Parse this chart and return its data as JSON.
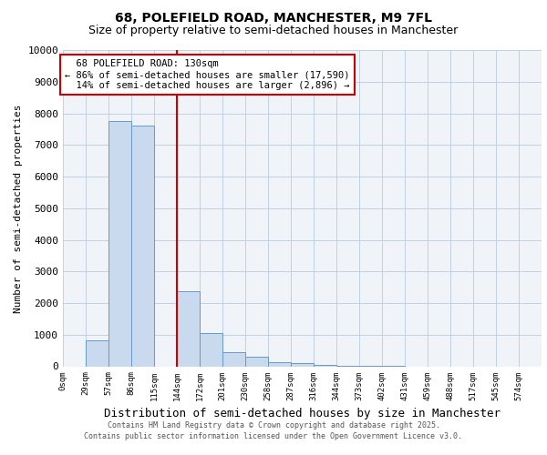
{
  "title": "68, POLEFIELD ROAD, MANCHESTER, M9 7FL",
  "subtitle": "Size of property relative to semi-detached houses in Manchester",
  "xlabel": "Distribution of semi-detached houses by size in Manchester",
  "ylabel": "Number of semi-detached properties",
  "bar_labels": [
    "0sqm",
    "29sqm",
    "57sqm",
    "86sqm",
    "115sqm",
    "144sqm",
    "172sqm",
    "201sqm",
    "230sqm",
    "258sqm",
    "287sqm",
    "316sqm",
    "344sqm",
    "373sqm",
    "402sqm",
    "431sqm",
    "459sqm",
    "488sqm",
    "517sqm",
    "545sqm",
    "574sqm"
  ],
  "bar_values": [
    0,
    820,
    7750,
    7600,
    0,
    2380,
    1060,
    460,
    290,
    130,
    110,
    55,
    20,
    10,
    5,
    0,
    0,
    0,
    0,
    0,
    0
  ],
  "bar_color": "#c9d9ee",
  "bar_edge_color": "#6699cc",
  "vline_x": 5.0,
  "property_line_label": "68 POLEFIELD ROAD: 130sqm",
  "pct_smaller": 86,
  "n_smaller": 17590,
  "pct_larger": 14,
  "n_larger": 2896,
  "vline_color": "#cc0000",
  "annotation_box_color": "#cc0000",
  "ylim": [
    0,
    10000
  ],
  "yticks": [
    0,
    1000,
    2000,
    3000,
    4000,
    5000,
    6000,
    7000,
    8000,
    9000,
    10000
  ],
  "footer_line1": "Contains HM Land Registry data © Crown copyright and database right 2025.",
  "footer_line2": "Contains public sector information licensed under the Open Government Licence v3.0.",
  "background_color": "#f0f4f8",
  "grid_color": "#b8cce4",
  "title_fontsize": 10,
  "subtitle_fontsize": 9,
  "ylabel_fontsize": 8,
  "xlabel_fontsize": 9
}
